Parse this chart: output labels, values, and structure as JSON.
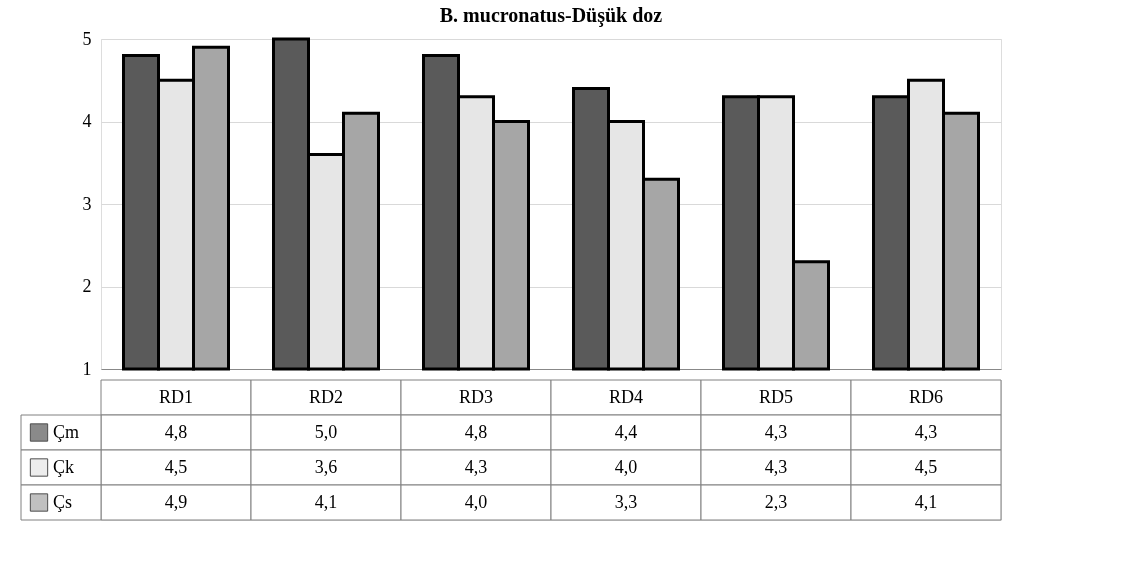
{
  "chart_data": {
    "type": "bar",
    "title": "B. mucronatus-Düşük doz",
    "categories": [
      "RD1",
      "RD2",
      "RD3",
      "RD4",
      "RD5",
      "RD6"
    ],
    "series": [
      {
        "name": "Çm",
        "color": "#5a5a5a",
        "values": [
          4.8,
          5.0,
          4.8,
          4.4,
          4.3,
          4.3
        ],
        "value_labels": [
          "4,8",
          "5,0",
          "4,8",
          "4,4",
          "4,3",
          "4,3"
        ]
      },
      {
        "name": "Çk",
        "color": "#e6e6e6",
        "values": [
          4.5,
          3.6,
          4.3,
          4.0,
          4.3,
          4.5
        ],
        "value_labels": [
          "4,5",
          "3,6",
          "4,3",
          "4,0",
          "4,3",
          "4,5"
        ]
      },
      {
        "name": "Çs",
        "color": "#a6a6a6",
        "values": [
          4.9,
          4.1,
          4.0,
          3.3,
          2.3,
          4.1
        ],
        "value_labels": [
          "4,9",
          "4,1",
          "4,0",
          "3,3",
          "2,3",
          "4,1"
        ]
      }
    ],
    "ylim": [
      1,
      5
    ],
    "yticks": [
      1,
      2,
      3,
      4,
      5
    ],
    "grid": "y",
    "legend": "bottom left"
  }
}
